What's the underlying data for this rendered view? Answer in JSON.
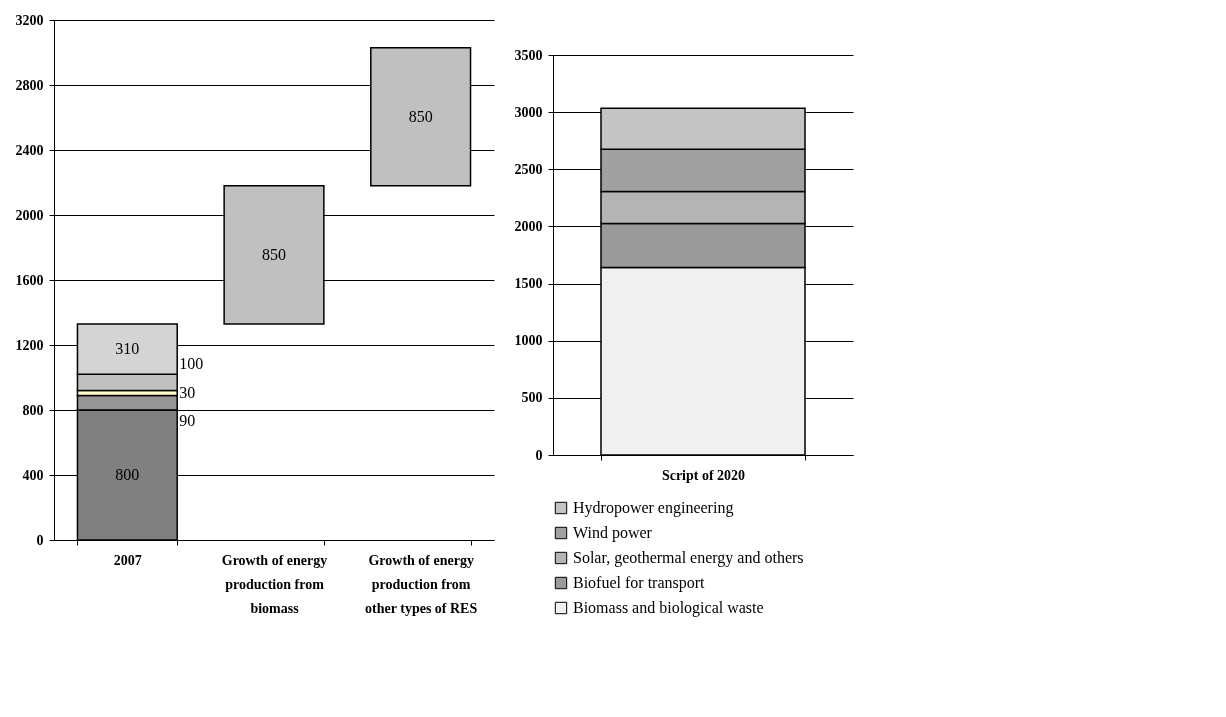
{
  "chart_data": [
    {
      "type": "bar",
      "stacked": true,
      "categories": [
        "2007",
        "Growth of energy production from biomass",
        "Growth of energy production from other types of RES"
      ],
      "series": [
        {
          "color": "#808080",
          "values": [
            800,
            null,
            null
          ]
        },
        {
          "color": "#969696",
          "values": [
            90,
            null,
            null
          ]
        },
        {
          "color": "#ffffcc",
          "values": [
            30,
            null,
            null
          ]
        },
        {
          "color": "#c0c0c0",
          "values": [
            100,
            null,
            null
          ]
        },
        {
          "color": "#d4d4d4",
          "values": [
            310,
            null,
            null
          ]
        },
        {
          "color": "#c0c0c0",
          "values": [
            null,
            850,
            850
          ],
          "base": [
            null,
            1330,
            2180
          ]
        }
      ],
      "ylim": [
        0,
        3200
      ],
      "yticks": [
        0,
        400,
        800,
        1200,
        1600,
        2000,
        2400,
        2800,
        3200
      ],
      "grid": "y",
      "data_labels": true
    },
    {
      "type": "bar",
      "stacked": true,
      "categories": [
        "Script of 2020"
      ],
      "series": [
        {
          "name": "Biomass and biological waste",
          "color": "#f0f0f0",
          "values": [
            1640
          ]
        },
        {
          "name": "Biofuel for transport",
          "color": "#9a9a9a",
          "values": [
            385
          ]
        },
        {
          "name": "Solar, geothermal energy and others",
          "color": "#b4b4b4",
          "values": [
            280
          ]
        },
        {
          "name": "Wind power",
          "color": "#a0a0a0",
          "values": [
            370
          ]
        },
        {
          "name": "Hydropower engineering",
          "color": "#c4c4c4",
          "values": [
            360
          ]
        }
      ],
      "ylim": [
        0,
        3500
      ],
      "yticks": [
        0,
        500,
        1000,
        1500,
        2000,
        2500,
        3000,
        3500
      ],
      "grid": "y",
      "legend": "bottom"
    }
  ]
}
